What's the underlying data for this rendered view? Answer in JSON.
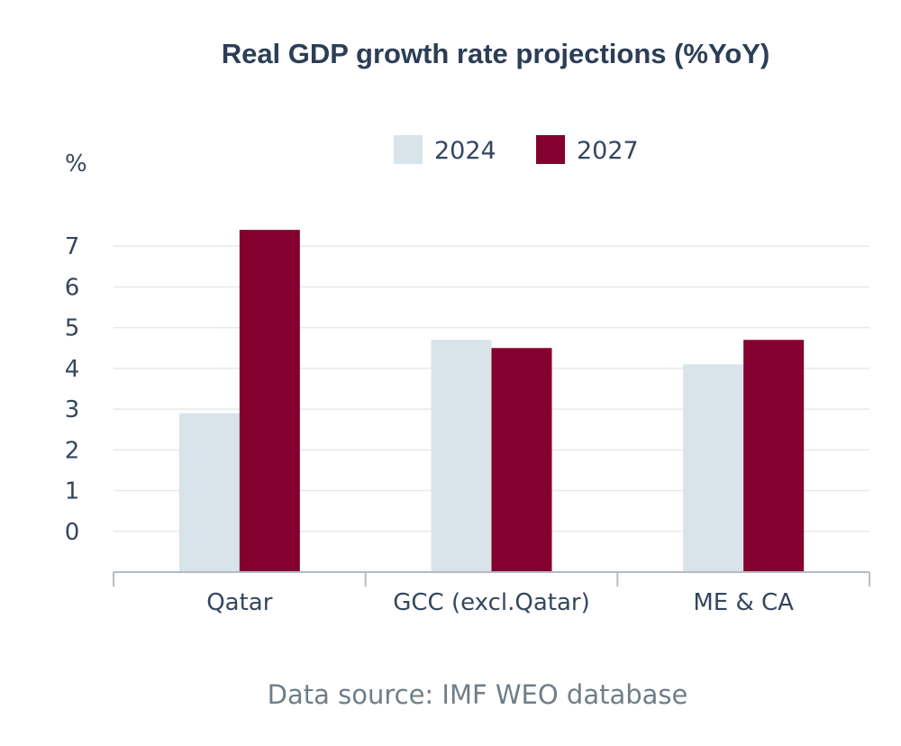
{
  "colors": {
    "series_2024": "#d8e4ea",
    "series_2027": "#83002f",
    "text": "#34465e",
    "title": "#2c3e57",
    "source": "#6f7e88",
    "grid": "#e6e9ec"
  },
  "chart_data": {
    "type": "bar",
    "title": "Real GDP growth rate projections (%YoY)",
    "ylabel": "%",
    "xlabel": "",
    "categories": [
      "Qatar",
      "GCC (excl.Qatar)",
      "ME & CA"
    ],
    "series": [
      {
        "name": "2024",
        "values": [
          2.9,
          4.7,
          4.1
        ]
      },
      {
        "name": "2027",
        "values": [
          7.4,
          4.5,
          4.7
        ]
      }
    ],
    "ylim": [
      -1,
      8
    ],
    "yticks": [
      0,
      1,
      2,
      3,
      4,
      5,
      6,
      7
    ],
    "ytick_labels": [
      "0",
      "1",
      "2",
      "3",
      "4",
      "5",
      "6",
      "7"
    ],
    "grid": true,
    "legend": "top-center",
    "source": "Data source: IMF WEO database"
  }
}
